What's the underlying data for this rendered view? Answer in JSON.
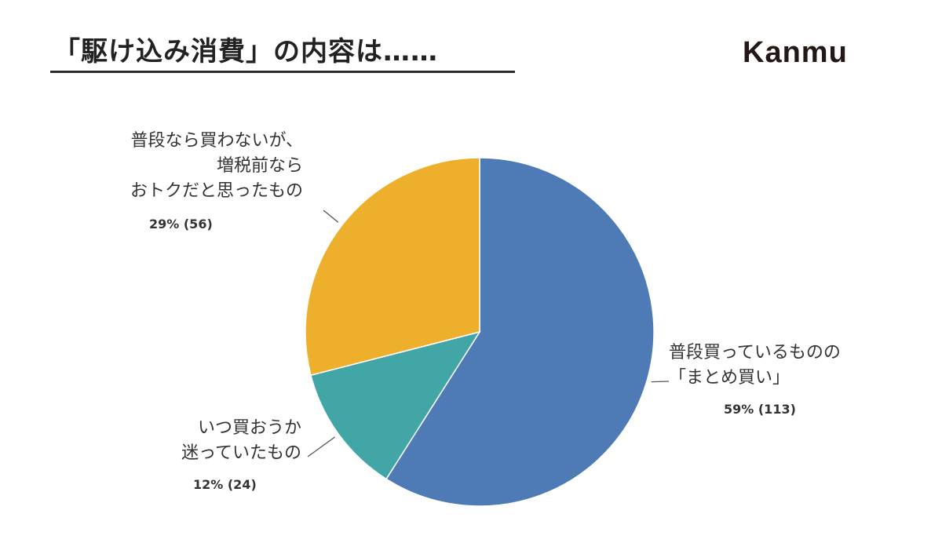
{
  "header": {
    "title": "「駆け込み消費」の内容は……",
    "brand": "Kanmu"
  },
  "chart_data": {
    "type": "pie",
    "title": "「駆け込み消費」の内容は……",
    "start_angle_deg": 0,
    "direction": "clockwise",
    "slices": [
      {
        "lines": [
          "普段買っているものの",
          "「まとめ買い」"
        ],
        "percent": 59,
        "count": 113,
        "value_label": "59% (113)",
        "color": "#4E7BB5"
      },
      {
        "lines": [
          "いつ買おうか",
          "迷っていたもの"
        ],
        "percent": 12,
        "count": 24,
        "value_label": "12% (24)",
        "color": "#41A6A5"
      },
      {
        "lines": [
          "普段なら買わないが、",
          "増税前なら",
          "おトクだと思ったもの"
        ],
        "percent": 29,
        "count": 56,
        "value_label": "29% (56)",
        "color": "#EEAF2C"
      }
    ]
  }
}
